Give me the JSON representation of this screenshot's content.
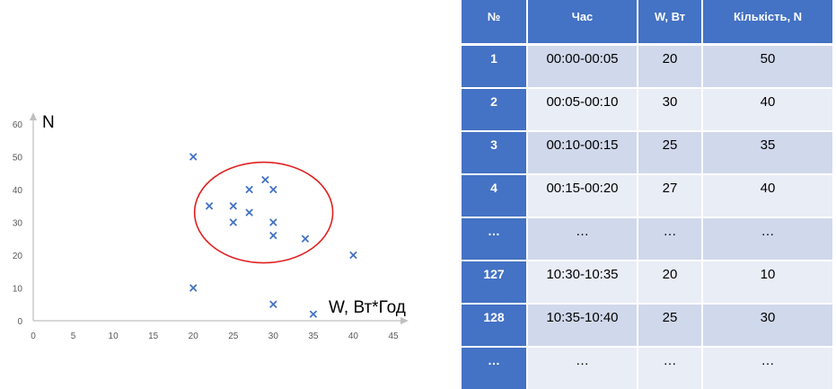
{
  "chart_data": {
    "type": "scatter",
    "xlabel": "W, Вт*Год",
    "ylabel": "N",
    "xlim": [
      0,
      45
    ],
    "ylim": [
      0,
      60
    ],
    "xticks": [
      0,
      5,
      10,
      15,
      20,
      25,
      30,
      35,
      40,
      45
    ],
    "yticks": [
      0,
      10,
      20,
      30,
      40,
      50,
      60
    ],
    "points": [
      {
        "x": 20,
        "y": 50
      },
      {
        "x": 20,
        "y": 10
      },
      {
        "x": 22,
        "y": 35
      },
      {
        "x": 25,
        "y": 35
      },
      {
        "x": 25,
        "y": 30
      },
      {
        "x": 27,
        "y": 40
      },
      {
        "x": 27,
        "y": 33
      },
      {
        "x": 29,
        "y": 43
      },
      {
        "x": 30,
        "y": 40
      },
      {
        "x": 30,
        "y": 30
      },
      {
        "x": 30,
        "y": 26
      },
      {
        "x": 34,
        "y": 25
      },
      {
        "x": 40,
        "y": 20
      },
      {
        "x": 30,
        "y": 5
      },
      {
        "x": 35,
        "y": 2
      }
    ],
    "marker_color": "#4472c4",
    "highlight_color": "#e02020",
    "grid": false
  },
  "table": {
    "headers": [
      "№",
      "Час",
      "W, Вт",
      "Кількість,  N"
    ],
    "rows": [
      [
        "1",
        "00:00-00:05",
        "20",
        "50"
      ],
      [
        "2",
        "00:05-00:10",
        "30",
        "40"
      ],
      [
        "3",
        "00:10-00:15",
        "25",
        "35"
      ],
      [
        "4",
        "00:15-00:20",
        "27",
        "40"
      ],
      [
        "…",
        "…",
        "…",
        "…"
      ],
      [
        "127",
        "10:30-10:35",
        "20",
        "10"
      ],
      [
        "128",
        "10:35-10:40",
        "25",
        "30"
      ],
      [
        "…",
        "…",
        "…",
        "…"
      ]
    ],
    "header_color": "#4472c4"
  }
}
